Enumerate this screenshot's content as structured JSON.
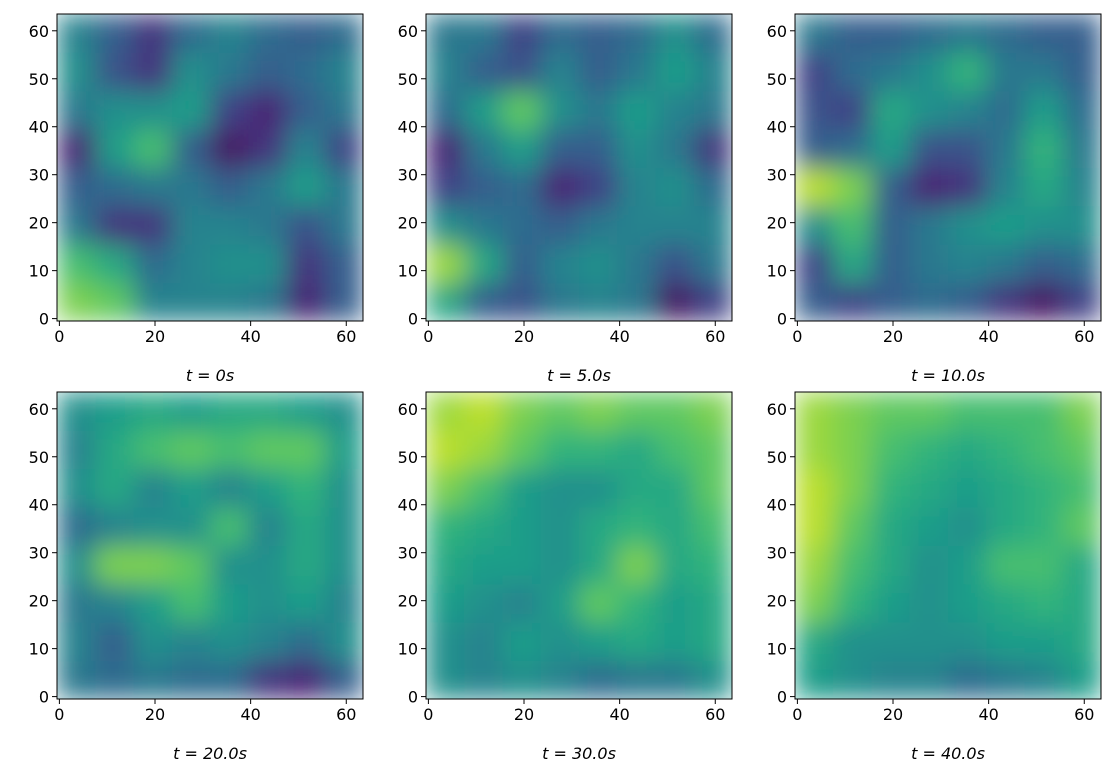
{
  "chart_data": [
    {
      "type": "heatmap",
      "xlabel": "t = 0s",
      "colormap": "viridis",
      "clim": [
        0,
        1
      ],
      "xlim": [
        -0.5,
        63.5
      ],
      "ylim": [
        -0.5,
        63.5
      ],
      "xticks": [
        0,
        20,
        40,
        60
      ],
      "yticks": [
        0,
        10,
        20,
        30,
        40,
        50,
        60
      ],
      "z": [
        [
          0.8,
          0.75,
          0.45,
          0.45,
          0.45,
          0.4,
          0.1,
          0.3
        ],
        [
          0.7,
          0.6,
          0.35,
          0.45,
          0.5,
          0.5,
          0.15,
          0.3
        ],
        [
          0.4,
          0.15,
          0.15,
          0.45,
          0.45,
          0.4,
          0.25,
          0.4
        ],
        [
          0.3,
          0.35,
          0.4,
          0.4,
          0.3,
          0.4,
          0.55,
          0.4
        ],
        [
          0.1,
          0.55,
          0.7,
          0.3,
          0.05,
          0.15,
          0.45,
          0.2
        ],
        [
          0.4,
          0.5,
          0.5,
          0.55,
          0.2,
          0.1,
          0.3,
          0.4
        ],
        [
          0.5,
          0.25,
          0.15,
          0.5,
          0.4,
          0.3,
          0.35,
          0.45
        ],
        [
          0.45,
          0.3,
          0.15,
          0.35,
          0.45,
          0.35,
          0.3,
          0.35
        ]
      ]
    },
    {
      "type": "heatmap",
      "xlabel": "t = 5.0s",
      "colormap": "viridis",
      "clim": [
        0,
        1
      ],
      "xlim": [
        -0.5,
        63.5
      ],
      "ylim": [
        -0.5,
        63.5
      ],
      "xticks": [
        0,
        20,
        40,
        60
      ],
      "yticks": [
        0,
        10,
        20,
        30,
        40,
        50,
        60
      ],
      "z": [
        [
          0.6,
          0.3,
          0.25,
          0.4,
          0.45,
          0.4,
          0.05,
          0.2
        ],
        [
          0.85,
          0.6,
          0.3,
          0.45,
          0.5,
          0.4,
          0.25,
          0.4
        ],
        [
          0.5,
          0.4,
          0.35,
          0.3,
          0.4,
          0.45,
          0.45,
          0.45
        ],
        [
          0.2,
          0.3,
          0.35,
          0.1,
          0.2,
          0.45,
          0.5,
          0.35
        ],
        [
          0.1,
          0.4,
          0.55,
          0.3,
          0.3,
          0.5,
          0.4,
          0.15
        ],
        [
          0.35,
          0.55,
          0.75,
          0.5,
          0.4,
          0.55,
          0.45,
          0.4
        ],
        [
          0.45,
          0.3,
          0.25,
          0.45,
          0.3,
          0.4,
          0.55,
          0.45
        ],
        [
          0.4,
          0.4,
          0.2,
          0.35,
          0.3,
          0.35,
          0.5,
          0.35
        ]
      ]
    },
    {
      "type": "heatmap",
      "xlabel": "t = 10.0s",
      "colormap": "viridis",
      "clim": [
        0,
        1
      ],
      "xlim": [
        -0.5,
        63.5
      ],
      "ylim": [
        -0.5,
        63.5
      ],
      "xticks": [
        0,
        20,
        40,
        60
      ],
      "yticks": [
        0,
        10,
        20,
        30,
        40,
        50,
        60
      ],
      "z": [
        [
          0.3,
          0.2,
          0.3,
          0.35,
          0.3,
          0.15,
          0.05,
          0.2
        ],
        [
          0.2,
          0.6,
          0.3,
          0.4,
          0.45,
          0.4,
          0.3,
          0.35
        ],
        [
          0.5,
          0.7,
          0.3,
          0.4,
          0.5,
          0.55,
          0.5,
          0.5
        ],
        [
          0.9,
          0.8,
          0.3,
          0.1,
          0.15,
          0.45,
          0.6,
          0.45
        ],
        [
          0.3,
          0.35,
          0.55,
          0.25,
          0.25,
          0.4,
          0.65,
          0.4
        ],
        [
          0.25,
          0.2,
          0.6,
          0.5,
          0.45,
          0.35,
          0.55,
          0.35
        ],
        [
          0.2,
          0.35,
          0.4,
          0.5,
          0.65,
          0.4,
          0.4,
          0.3
        ],
        [
          0.4,
          0.3,
          0.3,
          0.35,
          0.4,
          0.35,
          0.3,
          0.3
        ]
      ]
    },
    {
      "type": "heatmap",
      "xlabel": "t = 20.0s",
      "colormap": "viridis",
      "clim": [
        0,
        1
      ],
      "xlim": [
        -0.5,
        63.5
      ],
      "ylim": [
        -0.5,
        63.5
      ],
      "xticks": [
        0,
        20,
        40,
        60
      ],
      "yticks": [
        0,
        10,
        20,
        30,
        40,
        50,
        60
      ],
      "z": [
        [
          0.4,
          0.35,
          0.4,
          0.35,
          0.35,
          0.15,
          0.1,
          0.3
        ],
        [
          0.45,
          0.3,
          0.5,
          0.45,
          0.5,
          0.45,
          0.35,
          0.5
        ],
        [
          0.4,
          0.45,
          0.55,
          0.7,
          0.55,
          0.5,
          0.55,
          0.45
        ],
        [
          0.5,
          0.8,
          0.8,
          0.75,
          0.5,
          0.5,
          0.6,
          0.5
        ],
        [
          0.35,
          0.45,
          0.5,
          0.5,
          0.7,
          0.45,
          0.6,
          0.5
        ],
        [
          0.5,
          0.6,
          0.45,
          0.55,
          0.45,
          0.55,
          0.65,
          0.5
        ],
        [
          0.45,
          0.6,
          0.7,
          0.75,
          0.7,
          0.75,
          0.75,
          0.55
        ],
        [
          0.5,
          0.55,
          0.6,
          0.55,
          0.6,
          0.6,
          0.55,
          0.5
        ]
      ]
    },
    {
      "type": "heatmap",
      "xlabel": "t = 30.0s",
      "colormap": "viridis",
      "clim": [
        0,
        1
      ],
      "xlim": [
        -0.5,
        63.5
      ],
      "ylim": [
        -0.5,
        63.5
      ],
      "xticks": [
        0,
        20,
        40,
        60
      ],
      "yticks": [
        0,
        10,
        20,
        30,
        40,
        50,
        60
      ],
      "z": [
        [
          0.5,
          0.45,
          0.5,
          0.45,
          0.35,
          0.4,
          0.4,
          0.5
        ],
        [
          0.5,
          0.45,
          0.55,
          0.5,
          0.55,
          0.6,
          0.55,
          0.6
        ],
        [
          0.55,
          0.5,
          0.45,
          0.55,
          0.75,
          0.65,
          0.55,
          0.6
        ],
        [
          0.6,
          0.55,
          0.55,
          0.5,
          0.6,
          0.8,
          0.6,
          0.65
        ],
        [
          0.65,
          0.6,
          0.55,
          0.5,
          0.6,
          0.65,
          0.6,
          0.7
        ],
        [
          0.8,
          0.7,
          0.55,
          0.5,
          0.5,
          0.6,
          0.6,
          0.75
        ],
        [
          0.9,
          0.85,
          0.75,
          0.65,
          0.65,
          0.6,
          0.7,
          0.75
        ],
        [
          0.85,
          0.9,
          0.8,
          0.75,
          0.8,
          0.75,
          0.75,
          0.8
        ]
      ]
    },
    {
      "type": "heatmap",
      "xlabel": "t = 40.0s",
      "colormap": "viridis",
      "clim": [
        0,
        1
      ],
      "xlim": [
        -0.5,
        63.5
      ],
      "ylim": [
        -0.5,
        63.5
      ],
      "xticks": [
        0,
        20,
        40,
        60
      ],
      "yticks": [
        0,
        10,
        20,
        30,
        40,
        50,
        60
      ],
      "z": [
        [
          0.55,
          0.5,
          0.45,
          0.45,
          0.35,
          0.4,
          0.45,
          0.55
        ],
        [
          0.6,
          0.5,
          0.5,
          0.5,
          0.5,
          0.55,
          0.55,
          0.6
        ],
        [
          0.8,
          0.65,
          0.55,
          0.5,
          0.55,
          0.6,
          0.65,
          0.6
        ],
        [
          0.85,
          0.7,
          0.6,
          0.5,
          0.55,
          0.7,
          0.7,
          0.6
        ],
        [
          0.9,
          0.75,
          0.6,
          0.55,
          0.5,
          0.6,
          0.65,
          0.75
        ],
        [
          0.9,
          0.8,
          0.65,
          0.6,
          0.55,
          0.6,
          0.65,
          0.7
        ],
        [
          0.85,
          0.8,
          0.7,
          0.65,
          0.6,
          0.65,
          0.7,
          0.75
        ],
        [
          0.85,
          0.8,
          0.75,
          0.75,
          0.7,
          0.7,
          0.7,
          0.8
        ]
      ]
    }
  ]
}
